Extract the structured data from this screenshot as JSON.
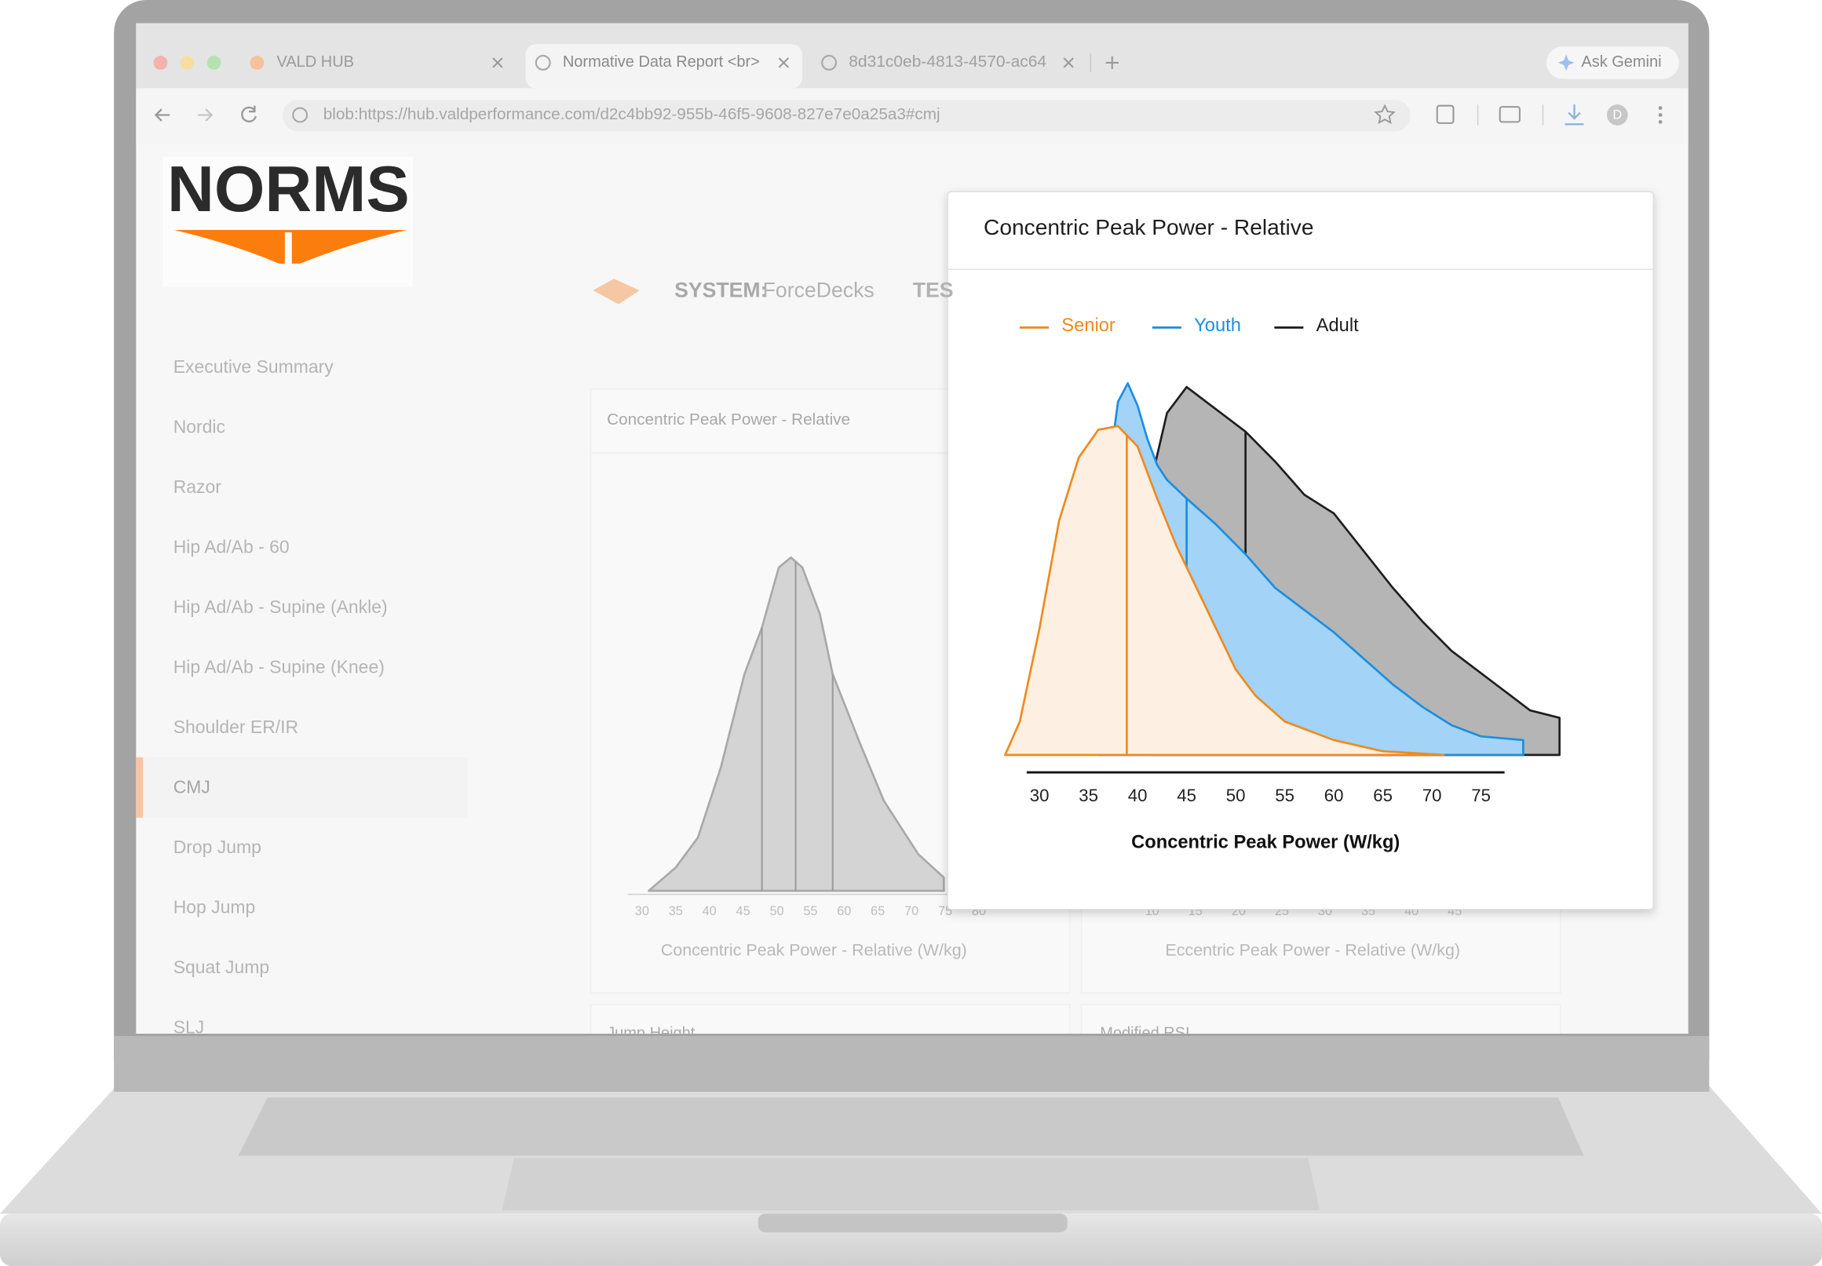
{
  "browser": {
    "tabs": [
      "VALD HUB",
      "Normative Data Report <br>",
      "8d31c0eb-4813-4570-ac64"
    ],
    "gemini": "Ask Gemini",
    "url": "blob:https://hub.valdperformance.com/d2c4bb92-955b-46f5-9608-827e7e0a25a3#cmj",
    "profile": "D"
  },
  "app": {
    "logo": "NORMS",
    "system_label": "SYSTEM:",
    "system": "ForceDecks",
    "test_label": "TES",
    "nav": [
      {
        "label": "Executive Summary"
      },
      {
        "label": "Nordic"
      },
      {
        "label": "Razor"
      },
      {
        "label": "Hip Ad/Ab - 60"
      },
      {
        "label": "Hip Ad/Ab - Supine (Ankle)"
      },
      {
        "label": "Hip Ad/Ab - Supine (Knee)"
      },
      {
        "label": "Shoulder ER/IR"
      },
      {
        "label": "CMJ",
        "selected": true
      },
      {
        "label": "Drop Jump"
      },
      {
        "label": "Hop Jump"
      },
      {
        "label": "Squat Jump"
      },
      {
        "label": "SLJ"
      }
    ],
    "lower_cards": [
      "Jump Height",
      "Modified RSI"
    ]
  },
  "chart_data": [
    {
      "type": "density",
      "title": "Concentric Peak Power - Relative",
      "xlabel": "Concentric Peak Power (W/kg)",
      "xlim": [
        28.7,
        77.4
      ],
      "ylim": [
        0,
        1
      ],
      "xticks": [
        30,
        35,
        40,
        45,
        50,
        55,
        60,
        65,
        70,
        75
      ],
      "legend": true,
      "series": [
        {
          "name": "Senior",
          "color": "#ef8a1d",
          "fill": "#fdefe1",
          "x": [
            26.5,
            28,
            30,
            32,
            34,
            36,
            38,
            40,
            42,
            44,
            46,
            48,
            50,
            52,
            55,
            60,
            65,
            71.2
          ],
          "values": [
            0,
            0.09,
            0.34,
            0.63,
            0.8,
            0.875,
            0.885,
            0.83,
            0.69,
            0.56,
            0.45,
            0.34,
            0.23,
            0.16,
            0.09,
            0.04,
            0.01,
            0
          ],
          "median": 38.9
        },
        {
          "name": "Youth",
          "color": "#1b8ee0",
          "fill": "#a3d3f7",
          "x": [
            36,
            37,
            38,
            39,
            40,
            41,
            42,
            43,
            45,
            48,
            51,
            54,
            57,
            60,
            63,
            66,
            69,
            72,
            75,
            79.3
          ],
          "values": [
            0.4,
            0.75,
            0.95,
            1,
            0.94,
            0.85,
            0.78,
            0.74,
            0.69,
            0.62,
            0.54,
            0.45,
            0.39,
            0.33,
            0.26,
            0.19,
            0.13,
            0.08,
            0.05,
            0.04
          ],
          "median": 45
        },
        {
          "name": "Adult",
          "color": "#1e1e1e",
          "fill": "#b5b5b5",
          "x": [
            41.5,
            43,
            45,
            47,
            49,
            51,
            54,
            57,
            60,
            63,
            66,
            69,
            72,
            75,
            78,
            80,
            83
          ],
          "values": [
            0.75,
            0.92,
            0.99,
            0.95,
            0.91,
            0.87,
            0.79,
            0.7,
            0.65,
            0.55,
            0.45,
            0.36,
            0.28,
            0.22,
            0.16,
            0.12,
            0.1
          ],
          "median": 51
        }
      ]
    },
    {
      "type": "density",
      "title": "Concentric Peak Power - Relative",
      "xlabel": "Concentric Peak Power - Relative (W/kg)",
      "xlim": [
        27.9,
        81.4
      ],
      "ylim": [
        0,
        1
      ],
      "xticks": [
        30,
        35,
        40,
        45,
        50,
        55,
        60,
        65,
        70,
        75,
        80
      ],
      "series": [
        {
          "color": "#a9a9a9",
          "fill": "#d4d4d4",
          "x": [
            31,
            35,
            38.3,
            41.7,
            45.2,
            47.8,
            50.3,
            52.1,
            53.8,
            56.4,
            58.3,
            62.4,
            65.9,
            71,
            74.8
          ],
          "values": [
            0,
            0.07,
            0.16,
            0.37,
            0.65,
            0.79,
            0.97,
            1,
            0.97,
            0.83,
            0.65,
            0.44,
            0.27,
            0.11,
            0.04
          ],
          "markers": [
            47.8,
            52.8,
            58.3
          ]
        }
      ]
    },
    {
      "type": "density",
      "xlabel": "Eccentric Peak Power - Relative (W/kg)",
      "xlim": [
        0.2,
        55.6
      ],
      "xticks": [
        10,
        15,
        20,
        25,
        30,
        35,
        40,
        45
      ],
      "series": []
    }
  ]
}
